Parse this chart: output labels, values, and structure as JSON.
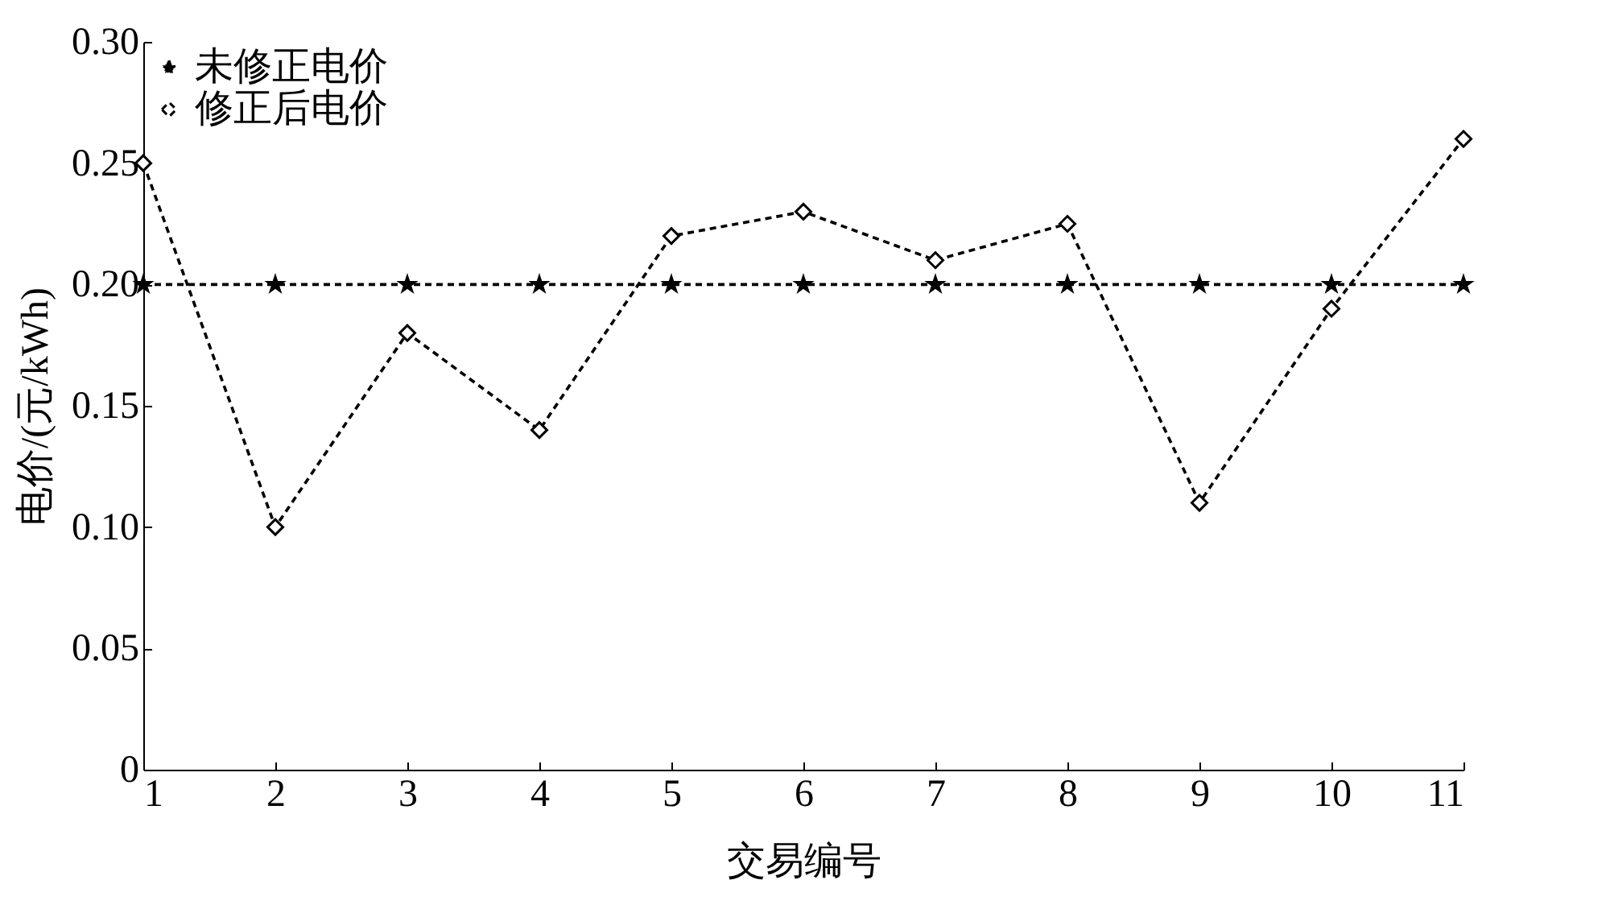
{
  "chart_data": {
    "type": "line",
    "xlabel": "交易编号",
    "ylabel": "电价/(元/kWh)",
    "x": [
      1,
      2,
      3,
      4,
      5,
      6,
      7,
      8,
      9,
      10,
      11
    ],
    "series": [
      {
        "name": "未修正电价",
        "color": "#000000",
        "marker": "star",
        "line_style": "dashed",
        "values": [
          0.2,
          0.2,
          0.2,
          0.2,
          0.2,
          0.2,
          0.2,
          0.2,
          0.2,
          0.2,
          0.2
        ]
      },
      {
        "name": "修正后电价",
        "color": "#000000",
        "marker": "diamond",
        "line_style": "dashed",
        "values": [
          0.25,
          0.1,
          0.18,
          0.14,
          0.22,
          0.23,
          0.21,
          0.225,
          0.11,
          0.19,
          0.26
        ]
      }
    ],
    "xlim": [
      1,
      11
    ],
    "xticks": [
      1,
      2,
      3,
      4,
      5,
      6,
      7,
      8,
      9,
      10,
      11
    ],
    "ylim": [
      0,
      0.3
    ],
    "yticks": [
      0,
      {
        "value": 0.05,
        "label": "0.05"
      },
      {
        "value": 0.1,
        "label": "0.10"
      },
      {
        "value": 0.15,
        "label": "0.15"
      },
      {
        "value": 0.2,
        "label": "0.20"
      },
      {
        "value": 0.25,
        "label": "0.25"
      },
      {
        "value": 0.3,
        "label": "0.30"
      }
    ],
    "grid": false,
    "legend": "top left"
  }
}
